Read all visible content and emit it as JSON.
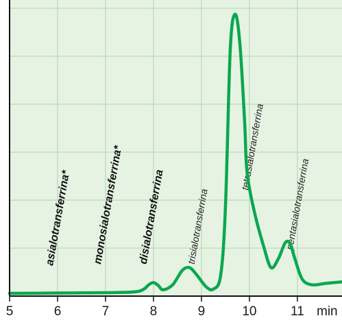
{
  "chart_data": {
    "type": "line",
    "title": "",
    "xlabel": "",
    "ylabel": "",
    "x_unit": "min",
    "xlim": [
      5,
      11.93
    ],
    "xticks": [
      5,
      6,
      7,
      8,
      9,
      10,
      11
    ],
    "xtick_labels": [
      "5",
      "6",
      "7",
      "8",
      "9",
      "10",
      "11"
    ],
    "grid": true,
    "colors": {
      "line": "#0aa84f",
      "plot_background": "#e6f3e3",
      "grid": "#b9dcb5",
      "axis": "#111111"
    },
    "series": [
      {
        "x": [
          5.0,
          6.0,
          7.0,
          7.6,
          7.8,
          7.9,
          8.0,
          8.1,
          8.2,
          8.4,
          8.6,
          8.75,
          8.9,
          9.1,
          9.25,
          9.4,
          9.5,
          9.6,
          9.7,
          9.8,
          9.9,
          9.95,
          10.1,
          10.3,
          10.45,
          10.6,
          10.75,
          10.85,
          10.95,
          11.1,
          11.3,
          11.6,
          11.93
        ],
        "y": [
          0.0,
          0.05,
          0.1,
          0.2,
          0.6,
          1.2,
          1.5,
          1.1,
          0.5,
          1.2,
          3.2,
          3.6,
          2.6,
          0.9,
          0.6,
          2.5,
          12.0,
          34.0,
          39.0,
          35.0,
          24.0,
          17.0,
          11.5,
          6.5,
          3.6,
          4.8,
          7.1,
          6.9,
          4.8,
          2.0,
          1.2,
          1.4,
          1.6
        ]
      }
    ],
    "peak_labels": [
      {
        "text": "asialotransferrina*",
        "x": 5.9,
        "style": "bold"
      },
      {
        "text": "monosialotransferrina*",
        "x": 6.9,
        "style": "bold"
      },
      {
        "text": "disialotransferrina",
        "x": 7.85,
        "style": "bold"
      },
      {
        "text": "trisialotransferrina",
        "x": 8.85,
        "style": "normal"
      },
      {
        "text": "tetrasialotransferrina",
        "x": 9.97,
        "style": "normal"
      },
      {
        "text": "pentasialotransferrina",
        "x": 10.9,
        "style": "normal"
      }
    ]
  }
}
